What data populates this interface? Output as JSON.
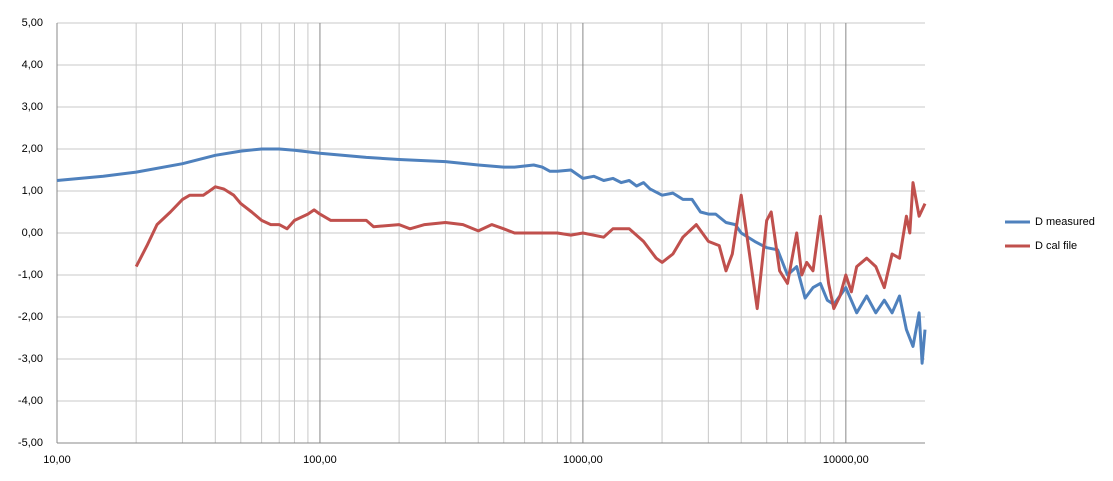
{
  "chart_data": {
    "type": "line",
    "xscale": "log",
    "grid": true,
    "legend": "right",
    "xlim": [
      10,
      20000
    ],
    "ylim": [
      -5,
      5
    ],
    "xticks": [
      {
        "value": 10,
        "label": "10,00"
      },
      {
        "value": 100,
        "label": "100,00"
      },
      {
        "value": 1000,
        "label": "1000,00"
      },
      {
        "value": 10000,
        "label": "10000,00"
      }
    ],
    "xminor": [
      20,
      30,
      40,
      50,
      60,
      70,
      80,
      90,
      200,
      300,
      400,
      500,
      600,
      700,
      800,
      900,
      2000,
      3000,
      4000,
      5000,
      6000,
      7000,
      8000,
      9000
    ],
    "yticks": [
      {
        "value": 5,
        "label": "5,00"
      },
      {
        "value": 4,
        "label": "4,00"
      },
      {
        "value": 3,
        "label": "3,00"
      },
      {
        "value": 2,
        "label": "2,00"
      },
      {
        "value": 1,
        "label": "1,00"
      },
      {
        "value": 0,
        "label": "0,00"
      },
      {
        "value": -1,
        "label": "-1,00"
      },
      {
        "value": -2,
        "label": "-2,00"
      },
      {
        "value": -3,
        "label": "-3,00"
      },
      {
        "value": -4,
        "label": "-4,00"
      },
      {
        "value": -5,
        "label": "-5,00"
      }
    ],
    "series": [
      {
        "name": "D measured",
        "color": "#4f81bd",
        "x": [
          10,
          15,
          20,
          30,
          40,
          50,
          60,
          70,
          80,
          100,
          150,
          200,
          300,
          400,
          500,
          550,
          650,
          700,
          750,
          800,
          900,
          1000,
          1100,
          1200,
          1300,
          1400,
          1500,
          1600,
          1700,
          1800,
          2000,
          2200,
          2400,
          2600,
          2800,
          3000,
          3200,
          3500,
          3800,
          4000,
          4500,
          5000,
          5500,
          6000,
          6500,
          7000,
          7500,
          8000,
          8500,
          9000,
          10000,
          11000,
          12000,
          13000,
          14000,
          15000,
          16000,
          17000,
          18000,
          19000,
          19500,
          20000
        ],
        "values": [
          1.25,
          1.35,
          1.45,
          1.65,
          1.85,
          1.95,
          2.0,
          2.0,
          1.97,
          1.9,
          1.8,
          1.75,
          1.7,
          1.62,
          1.57,
          1.57,
          1.62,
          1.57,
          1.47,
          1.47,
          1.5,
          1.3,
          1.35,
          1.25,
          1.3,
          1.2,
          1.25,
          1.12,
          1.2,
          1.05,
          0.9,
          0.95,
          0.8,
          0.8,
          0.5,
          0.45,
          0.45,
          0.25,
          0.2,
          0,
          -0.2,
          -0.35,
          -0.4,
          -1.0,
          -0.8,
          -1.55,
          -1.3,
          -1.2,
          -1.6,
          -1.7,
          -1.3,
          -1.9,
          -1.5,
          -1.9,
          -1.6,
          -1.9,
          -1.5,
          -2.3,
          -2.7,
          -1.9,
          -3.1,
          -2.3
        ]
      },
      {
        "name": "D cal file",
        "color": "#c0504d",
        "x": [
          20,
          22,
          24,
          27,
          30,
          32,
          36,
          38,
          40,
          43,
          47,
          50,
          55,
          60,
          65,
          70,
          75,
          80,
          90,
          95,
          100,
          110,
          150,
          160,
          200,
          220,
          250,
          300,
          350,
          400,
          450,
          500,
          550,
          800,
          900,
          1000,
          1200,
          1300,
          1500,
          1700,
          1900,
          2000,
          2200,
          2400,
          2700,
          3000,
          3300,
          3500,
          3700,
          4000,
          4300,
          4600,
          5000,
          5200,
          5600,
          6000,
          6500,
          6800,
          7100,
          7500,
          8000,
          8600,
          9000,
          9500,
          10000,
          10500,
          11000,
          12000,
          13000,
          14000,
          15000,
          16000,
          17000,
          17500,
          18000,
          19000,
          20000
        ],
        "values": [
          -0.8,
          -0.3,
          0.2,
          0.5,
          0.8,
          0.9,
          0.9,
          1.0,
          1.1,
          1.05,
          0.9,
          0.7,
          0.5,
          0.3,
          0.2,
          0.2,
          0.1,
          0.3,
          0.45,
          0.55,
          0.45,
          0.3,
          0.3,
          0.15,
          0.2,
          0.1,
          0.2,
          0.25,
          0.2,
          0.05,
          0.2,
          0.1,
          0.0,
          0.0,
          -0.05,
          0.0,
          -0.1,
          0.1,
          0.1,
          -0.2,
          -0.6,
          -0.7,
          -0.5,
          -0.1,
          0.2,
          -0.2,
          -0.3,
          -0.9,
          -0.5,
          0.9,
          -0.5,
          -1.8,
          0.3,
          0.5,
          -0.9,
          -1.2,
          0.0,
          -1.0,
          -0.7,
          -0.9,
          0.4,
          -1.2,
          -1.8,
          -1.5,
          -1.0,
          -1.4,
          -0.8,
          -0.6,
          -0.8,
          -1.3,
          -0.5,
          -0.6,
          0.4,
          0.0,
          1.2,
          0.4,
          0.7
        ]
      }
    ]
  }
}
